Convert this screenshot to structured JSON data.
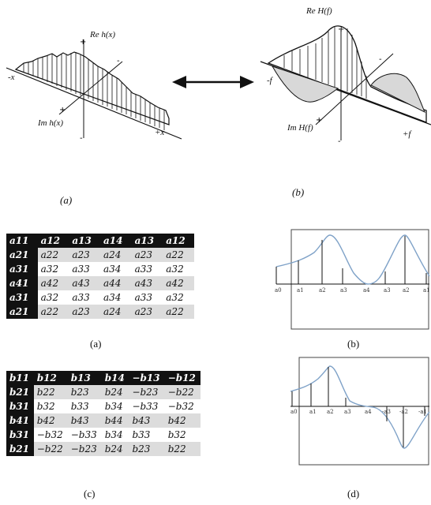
{
  "top": {
    "left_panel": {
      "re_label": "Re h(x)",
      "im_label": "Im h(x)",
      "neg_axis": "-x",
      "pos_axis": "+x",
      "caption": "(a)"
    },
    "right_panel": {
      "re_label": "Re H(f)",
      "im_label": "Im H(f)",
      "neg_axis": "-f",
      "pos_axis": "+f",
      "caption": "(b)"
    }
  },
  "matrix_a": {
    "caption": "(a)",
    "rows": [
      [
        "a11",
        "a12",
        "a13",
        "a14",
        "a13",
        "a12"
      ],
      [
        "a21",
        "a22",
        "a23",
        "a24",
        "a23",
        "a22"
      ],
      [
        "a31",
        "a32",
        "a33",
        "a34",
        "a33",
        "a32"
      ],
      [
        "a41",
        "a42",
        "a43",
        "a44",
        "a43",
        "a42"
      ],
      [
        "a31",
        "a32",
        "a33",
        "a34",
        "a33",
        "a32"
      ],
      [
        "a21",
        "a22",
        "a23",
        "a24",
        "a23",
        "a22"
      ]
    ]
  },
  "matrix_b": {
    "caption": "(c)",
    "rows": [
      [
        "b11",
        "b12",
        "b13",
        "b14",
        "−b13",
        "−b12"
      ],
      [
        "b21",
        "b22",
        "b23",
        "b24",
        "−b23",
        "−b22"
      ],
      [
        "b31",
        "b32",
        "b33",
        "b34",
        "−b33",
        "−b32"
      ],
      [
        "b41",
        "b42",
        "b43",
        "b44",
        "b43",
        "b42"
      ],
      [
        "b31",
        "−b32",
        "−b33",
        "b34",
        "b33",
        "b32"
      ],
      [
        "b21",
        "−b22",
        "−b23",
        "b24",
        "b23",
        "b22"
      ]
    ]
  },
  "plot_b": {
    "caption": "(b)",
    "ticks": [
      "a0",
      "a1",
      "a2",
      "a3",
      "a4",
      "a3",
      "a2",
      "a1"
    ]
  },
  "plot_d": {
    "caption": "(d)",
    "ticks": [
      "a0",
      "a1",
      "a2",
      "a3",
      "a4",
      "-a3",
      "-a2",
      "-a1"
    ]
  }
}
